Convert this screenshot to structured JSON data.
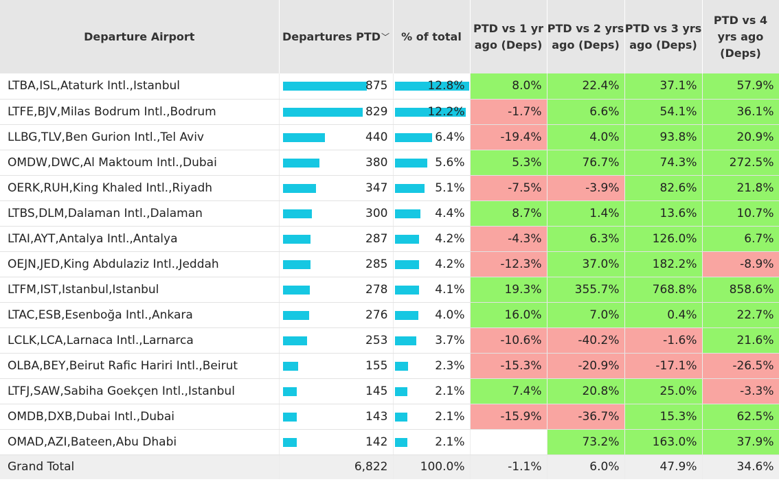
{
  "headers": {
    "airport": "Departure Airport",
    "departures": "Departures PTD",
    "pct": "% of total",
    "vs1": "PTD vs 1 yr ago (Deps)",
    "vs2": "PTD vs 2 yrs ago (Deps)",
    "vs3": "PTD vs 3 yrs ago (Deps)",
    "vs4": "PTD vs 4 yrs ago (Deps)"
  },
  "colors": {
    "bar": "#16c7e2",
    "positive": "#93f46a",
    "negative": "#f9a5a1",
    "header": "#e6e6e6"
  },
  "bar_max_departures": 875,
  "bar_max_pct": 12.8,
  "rows": [
    {
      "airport": "LTBA,ISL,Ataturk Intl.,Istanbul",
      "deps": 875,
      "deps_label": "875",
      "pct": 12.8,
      "pct_label": "12.8%",
      "vs1": "8.0%",
      "vs2": "22.4%",
      "vs3": "37.1%",
      "vs4": "57.9%"
    },
    {
      "airport": "LTFE,BJV,Milas Bodrum Intl.,Bodrum",
      "deps": 829,
      "deps_label": "829",
      "pct": 12.2,
      "pct_label": "12.2%",
      "vs1": "-1.7%",
      "vs2": "6.6%",
      "vs3": "54.1%",
      "vs4": "36.1%"
    },
    {
      "airport": "LLBG,TLV,Ben Gurion Intl.,Tel Aviv",
      "deps": 440,
      "deps_label": "440",
      "pct": 6.4,
      "pct_label": "6.4%",
      "vs1": "-19.4%",
      "vs2": "4.0%",
      "vs3": "93.8%",
      "vs4": "20.9%"
    },
    {
      "airport": "OMDW,DWC,Al Maktoum Intl.,Dubai",
      "deps": 380,
      "deps_label": "380",
      "pct": 5.6,
      "pct_label": "5.6%",
      "vs1": "5.3%",
      "vs2": "76.7%",
      "vs3": "74.3%",
      "vs4": "272.5%"
    },
    {
      "airport": "OERK,RUH,King Khaled Intl.,Riyadh",
      "deps": 347,
      "deps_label": "347",
      "pct": 5.1,
      "pct_label": "5.1%",
      "vs1": "-7.5%",
      "vs2": "-3.9%",
      "vs3": "82.6%",
      "vs4": "21.8%"
    },
    {
      "airport": "LTBS,DLM,Dalaman Intl.,Dalaman",
      "deps": 300,
      "deps_label": "300",
      "pct": 4.4,
      "pct_label": "4.4%",
      "vs1": "8.7%",
      "vs2": "1.4%",
      "vs3": "13.6%",
      "vs4": "10.7%"
    },
    {
      "airport": "LTAI,AYT,Antalya Intl.,Antalya",
      "deps": 287,
      "deps_label": "287",
      "pct": 4.2,
      "pct_label": "4.2%",
      "vs1": "-4.3%",
      "vs2": "6.3%",
      "vs3": "126.0%",
      "vs4": "6.7%"
    },
    {
      "airport": "OEJN,JED,King Abdulaziz Intl.,Jeddah",
      "deps": 285,
      "deps_label": "285",
      "pct": 4.2,
      "pct_label": "4.2%",
      "vs1": "-12.3%",
      "vs2": "37.0%",
      "vs3": "182.2%",
      "vs4": "-8.9%"
    },
    {
      "airport": "LTFM,IST,Istanbul,Istanbul",
      "deps": 278,
      "deps_label": "278",
      "pct": 4.1,
      "pct_label": "4.1%",
      "vs1": "19.3%",
      "vs2": "355.7%",
      "vs3": "768.8%",
      "vs4": "858.6%"
    },
    {
      "airport": "LTAC,ESB,Esenboğa Intl.,Ankara",
      "deps": 276,
      "deps_label": "276",
      "pct": 4.0,
      "pct_label": "4.0%",
      "vs1": "16.0%",
      "vs2": "7.0%",
      "vs3": "0.4%",
      "vs4": "22.7%"
    },
    {
      "airport": "LCLK,LCA,Larnaca Intl.,Larnarca",
      "deps": 253,
      "deps_label": "253",
      "pct": 3.7,
      "pct_label": "3.7%",
      "vs1": "-10.6%",
      "vs2": "-40.2%",
      "vs3": "-1.6%",
      "vs4": "21.6%"
    },
    {
      "airport": "OLBA,BEY,Beirut Rafic Hariri Intl.,Beirut",
      "deps": 155,
      "deps_label": "155",
      "pct": 2.3,
      "pct_label": "2.3%",
      "vs1": "-15.3%",
      "vs2": "-20.9%",
      "vs3": "-17.1%",
      "vs4": "-26.5%"
    },
    {
      "airport": "LTFJ,SAW,Sabiha Goekçen Intl.,Istanbul",
      "deps": 145,
      "deps_label": "145",
      "pct": 2.1,
      "pct_label": "2.1%",
      "vs1": "7.4%",
      "vs2": "20.8%",
      "vs3": "25.0%",
      "vs4": "-3.3%"
    },
    {
      "airport": "OMDB,DXB,Dubai Intl.,Dubai",
      "deps": 143,
      "deps_label": "143",
      "pct": 2.1,
      "pct_label": "2.1%",
      "vs1": "-15.9%",
      "vs2": "-36.7%",
      "vs3": "15.3%",
      "vs4": "62.5%"
    },
    {
      "airport": "OMAD,AZI,Bateen,Abu Dhabi",
      "deps": 142,
      "deps_label": "142",
      "pct": 2.1,
      "pct_label": "2.1%",
      "vs1": "",
      "vs2": "73.2%",
      "vs3": "163.0%",
      "vs4": "37.9%"
    }
  ],
  "total": {
    "label": "Grand Total",
    "deps": "6,822",
    "pct": "100.0%",
    "vs1": "-1.1%",
    "vs2": "6.0%",
    "vs3": "47.9%",
    "vs4": "34.6%"
  }
}
